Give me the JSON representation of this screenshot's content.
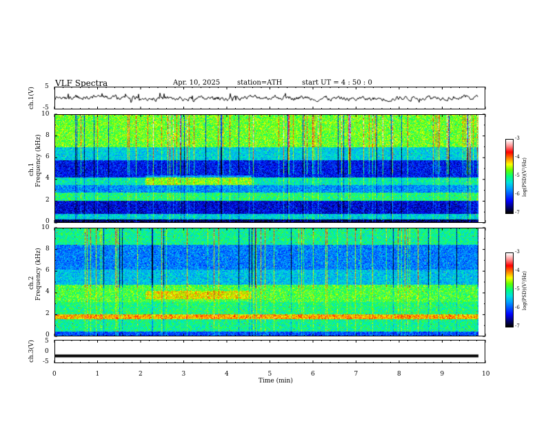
{
  "header": {
    "title": "VLF  Spectra",
    "date": "Apr. 10, 2025",
    "station": "station=ATH",
    "start": "start  UT  =   4  : 50 : 0"
  },
  "colors": {
    "colormap": [
      "#000000",
      "#000080",
      "#0000ff",
      "#0050ff",
      "#00a0ff",
      "#00e0e0",
      "#00ff80",
      "#60ff00",
      "#ffff00",
      "#ff8000",
      "#ff0000",
      "#ff9090",
      "#ffffff"
    ]
  },
  "chart_data": [
    {
      "type": "line",
      "panel": "ch1-waveform",
      "ylabel": "ch.1(V)",
      "ylim": [
        -5,
        5
      ],
      "yticks": [
        "5",
        "-5"
      ],
      "xlim": [
        0,
        10
      ],
      "note_values": "noisy waveform near 0 V with spikes"
    },
    {
      "type": "heatmap",
      "panel": "ch1-spectrogram",
      "ylabel_line1": "ch.1",
      "ylabel_line2": "Frequency  (kHz)",
      "ylim": [
        0,
        10
      ],
      "yticks": [
        "0",
        "2",
        "4",
        "6",
        "8",
        "10"
      ],
      "xlim": [
        0,
        10
      ],
      "colorbar": {
        "label": "log(PSD)(V²/Hz)",
        "range": [
          -7,
          -3
        ],
        "ticks": [
          "-3",
          "-4",
          "-5",
          "-6",
          "-7"
        ]
      }
    },
    {
      "type": "heatmap",
      "panel": "ch2-spectrogram",
      "ylabel_line1": "ch.2",
      "ylabel_line2": "Frequency  (kHz)",
      "ylim": [
        0,
        10
      ],
      "yticks": [
        "0",
        "2",
        "4",
        "6",
        "8",
        "10"
      ],
      "xlim": [
        0,
        10
      ],
      "colorbar": {
        "label": "log(PSD)(V²/Hz)",
        "range": [
          -7,
          -3
        ],
        "ticks": [
          "-3",
          "-4",
          "-5",
          "-6",
          "-7"
        ]
      }
    },
    {
      "type": "line",
      "panel": "ch3-waveform",
      "ylabel": "ch.3(V)",
      "ylim": [
        -5,
        5
      ],
      "yticks": [
        "5",
        "0",
        "-5"
      ],
      "xlim": [
        0,
        10
      ],
      "xticks": [
        "0",
        "1",
        "2",
        "3",
        "4",
        "5",
        "6",
        "7",
        "8",
        "9",
        "10"
      ],
      "xlabel": "Time  (min)",
      "note_values": "flat signal at about -2 V"
    }
  ]
}
